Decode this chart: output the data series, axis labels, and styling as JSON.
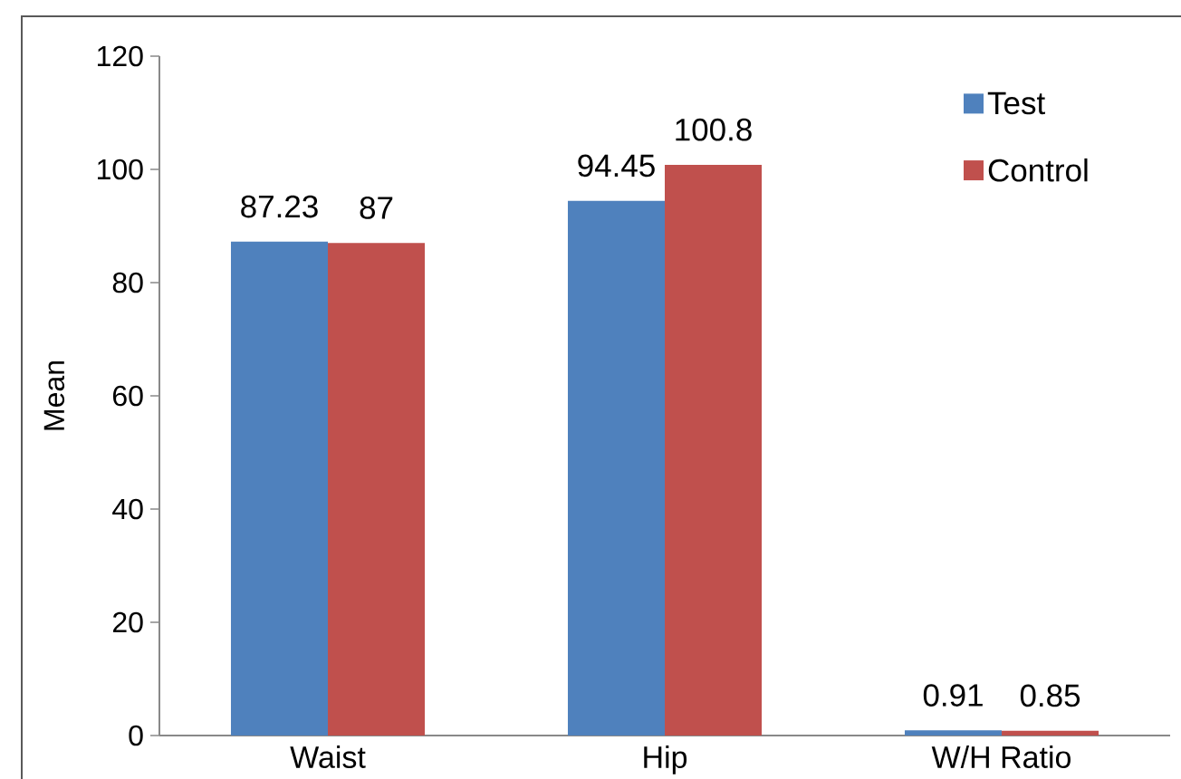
{
  "chart_data": {
    "type": "bar",
    "ylabel": "Mean",
    "categories": [
      "Waist",
      "Hip",
      "W/H Ratio"
    ],
    "series": [
      {
        "name": "Test",
        "color": "#4f81bd",
        "values": [
          87.23,
          94.45,
          0.91
        ]
      },
      {
        "name": "Control",
        "color": "#c0504d",
        "values": [
          87,
          100.8,
          0.85
        ]
      }
    ],
    "ylim": [
      0,
      120
    ],
    "yticks": [
      0,
      20,
      40,
      60,
      80,
      100,
      120
    ],
    "data_labels": true,
    "legend": "top right"
  }
}
